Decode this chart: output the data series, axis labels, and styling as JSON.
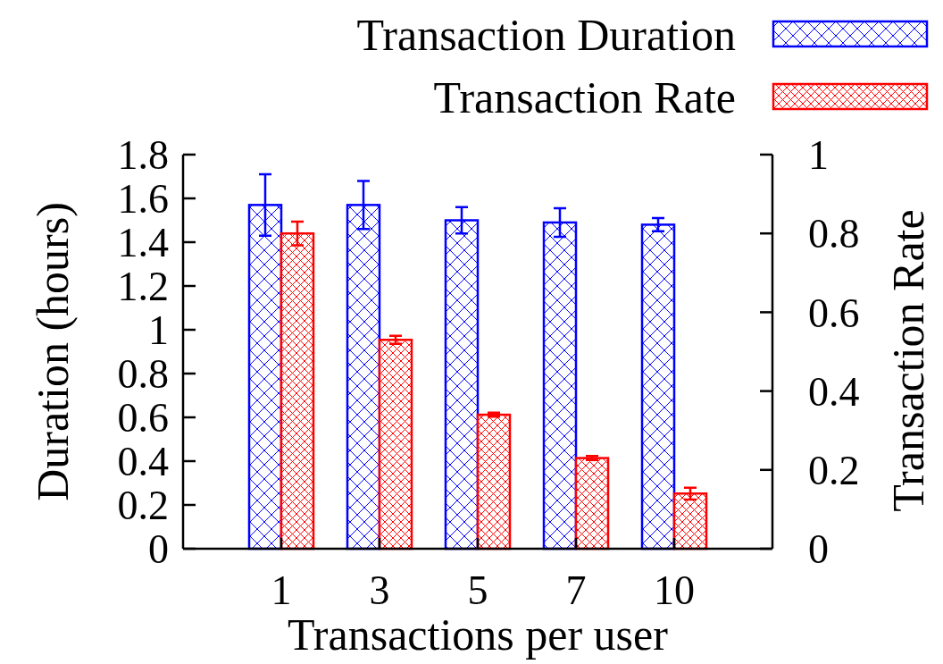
{
  "chart_data": {
    "type": "bar",
    "categories": [
      "1",
      "3",
      "5",
      "7",
      "10"
    ],
    "xlabel": "Transactions per user",
    "ylabel": "Duration (hours)",
    "y2label": "Transaction Rate",
    "ylim": [
      0,
      1.8
    ],
    "yticks": [
      0,
      0.2,
      0.4,
      0.6,
      0.8,
      1,
      1.2,
      1.4,
      1.6,
      1.8
    ],
    "y2lim": [
      0,
      1
    ],
    "y2ticks": [
      0,
      0.2,
      0.4,
      0.6,
      0.8,
      1
    ],
    "legend": "top right",
    "grid": false,
    "series": [
      {
        "name": "Transaction Duration",
        "color": "#0000ff",
        "values": [
          1.57,
          1.57,
          1.5,
          1.49,
          1.48
        ],
        "errors": [
          0.14,
          0.11,
          0.06,
          0.065,
          0.03
        ]
      },
      {
        "name": "Transaction Rate",
        "color": "#ff0000",
        "axis": "y2",
        "values": [
          0.8,
          0.53,
          0.34,
          0.23,
          0.14
        ],
        "errors": [
          0.03,
          0.01,
          0.005,
          0.005,
          0.015
        ]
      }
    ]
  }
}
